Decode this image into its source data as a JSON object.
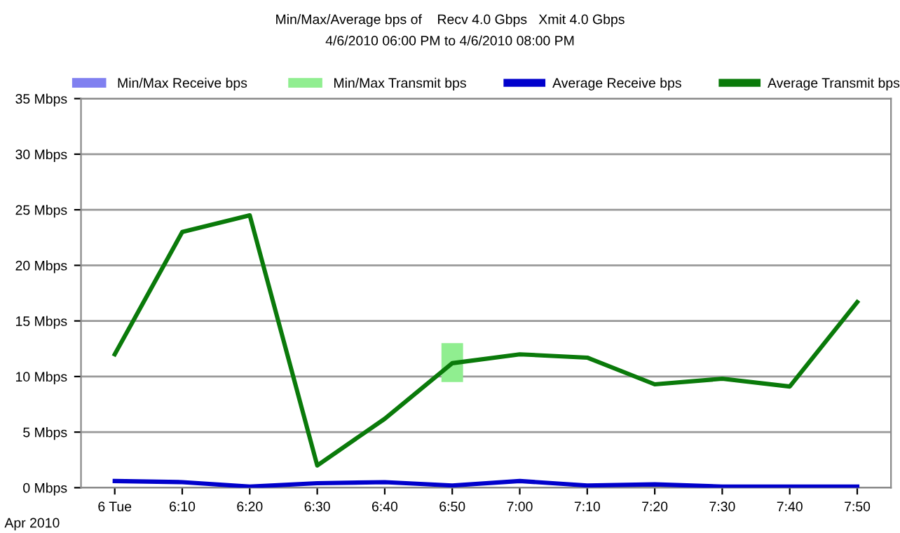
{
  "chart_data": {
    "type": "line",
    "title": "Min/Max/Average bps of    Recv 4.0 Gbps   Xmit 4.0 Gbps",
    "subtitle": "4/6/2010 06:00 PM to 4/6/2010 08:00 PM",
    "categories": [
      "6 Tue",
      "6:10",
      "6:20",
      "6:30",
      "6:40",
      "6:50",
      "7:00",
      "7:10",
      "7:20",
      "7:30",
      "7:40",
      "7:50"
    ],
    "series": [
      {
        "name": "Min/Max Receive bps",
        "type": "bar",
        "color": "#8080f0",
        "base": [
          null,
          null,
          null,
          null,
          null,
          null,
          null,
          null,
          null,
          null,
          null,
          null
        ],
        "values": [
          null,
          null,
          null,
          null,
          null,
          null,
          null,
          null,
          null,
          null,
          null,
          null
        ]
      },
      {
        "name": "Min/Max Transmit bps",
        "type": "bar",
        "color": "#90ee90",
        "base": [
          null,
          null,
          null,
          null,
          null,
          9.5,
          null,
          null,
          null,
          null,
          null,
          null
        ],
        "values": [
          null,
          null,
          null,
          null,
          null,
          3.5,
          null,
          null,
          null,
          null,
          null,
          null
        ]
      },
      {
        "name": "Average Receive bps",
        "color": "#0000cc",
        "values": [
          0.6,
          0.5,
          0.1,
          0.4,
          0.5,
          0.2,
          0.6,
          0.2,
          0.3,
          0.1,
          0.1,
          0.1
        ]
      },
      {
        "name": "Average Transmit bps",
        "color": "#0a7a0a",
        "values": [
          12,
          23,
          24.5,
          2,
          6.2,
          11.2,
          12,
          11.7,
          9.3,
          9.8,
          9.1,
          16.7
        ]
      }
    ],
    "ylim": [
      0,
      35
    ],
    "yticks": [
      {
        "value": 0,
        "label": "0 Mbps"
      },
      {
        "value": 5,
        "label": "5 Mbps"
      },
      {
        "value": 10,
        "label": "10 Mbps"
      },
      {
        "value": 15,
        "label": "15 Mbps"
      },
      {
        "value": 20,
        "label": "20 Mbps"
      },
      {
        "value": 25,
        "label": "25 Mbps"
      },
      {
        "value": 30,
        "label": "30 Mbps"
      },
      {
        "value": 35,
        "label": "35 Mbps"
      }
    ],
    "grid": "y",
    "legend": "top",
    "line_style": "solid",
    "annotations": [
      "Apr 2010"
    ]
  }
}
